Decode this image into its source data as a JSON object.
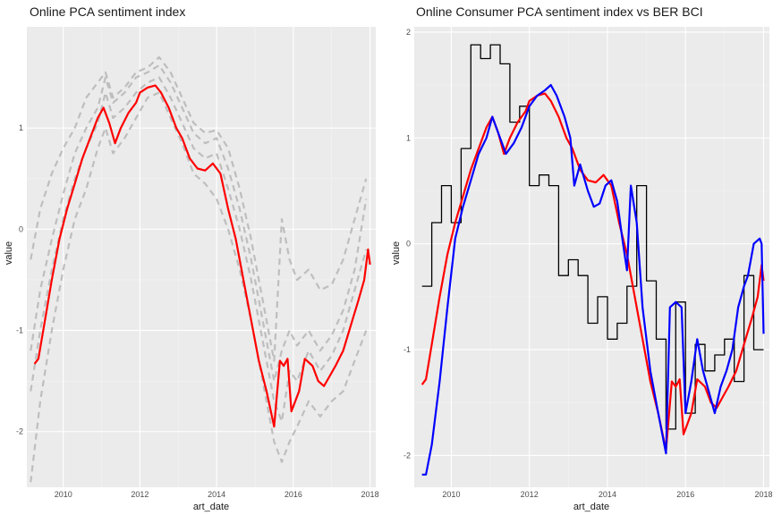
{
  "colors": {
    "panel_background": "#ebebeb",
    "grid_major": "#ffffff",
    "grid_minor": "#f4f4f4",
    "index_line": "#ff0000",
    "component_lines": "#bebebe",
    "ber_line": "#000000",
    "consumer_line": "#0000ff"
  },
  "chart_data": [
    {
      "type": "line",
      "title": "Online PCA sentiment index",
      "xlabel": "art_date",
      "ylabel": "value",
      "xlim": [
        2009.05,
        2018.15
      ],
      "ylim": [
        -2.55,
        2.0
      ],
      "x_ticks": [
        2010,
        2012,
        2014,
        2016,
        2018
      ],
      "x_tick_labels": [
        "2010",
        "2012",
        "2014",
        "2016",
        "2018"
      ],
      "y_ticks": [
        -2,
        -1,
        0,
        1
      ],
      "y_tick_labels": [
        "-2",
        "-1",
        "0",
        "1"
      ],
      "grid": true,
      "series": [
        {
          "role": "index",
          "color": "#ff0000",
          "style": "solid",
          "x": [
            2009.25,
            2009.35,
            2009.5,
            2009.7,
            2009.9,
            2010.1,
            2010.3,
            2010.5,
            2010.7,
            2010.9,
            2011.05,
            2011.2,
            2011.35,
            2011.5,
            2011.7,
            2011.9,
            2012.0,
            2012.2,
            2012.4,
            2012.55,
            2012.75,
            2012.95,
            2013.1,
            2013.3,
            2013.5,
            2013.7,
            2013.9,
            2014.1,
            2014.3,
            2014.5,
            2014.7,
            2014.9,
            2015.1,
            2015.3,
            2015.5,
            2015.65,
            2015.75,
            2015.85,
            2015.95,
            2016.05,
            2016.15,
            2016.3,
            2016.5,
            2016.65,
            2016.8,
            2016.95,
            2017.1,
            2017.3,
            2017.5,
            2017.7,
            2017.85,
            2017.95,
            2018.0
          ],
          "y": [
            -1.33,
            -1.28,
            -0.95,
            -0.5,
            -0.1,
            0.2,
            0.45,
            0.7,
            0.9,
            1.1,
            1.2,
            1.05,
            0.85,
            1.0,
            1.15,
            1.25,
            1.35,
            1.4,
            1.42,
            1.35,
            1.2,
            1.0,
            0.9,
            0.7,
            0.6,
            0.58,
            0.65,
            0.55,
            0.2,
            -0.1,
            -0.5,
            -0.9,
            -1.3,
            -1.6,
            -1.95,
            -1.3,
            -1.35,
            -1.28,
            -1.8,
            -1.7,
            -1.6,
            -1.28,
            -1.35,
            -1.5,
            -1.55,
            -1.45,
            -1.35,
            -1.2,
            -0.95,
            -0.7,
            -0.5,
            -0.2,
            -0.35
          ]
        },
        {
          "role": "component",
          "color": "#bebebe",
          "style": "dashed",
          "x": [
            2009.15,
            2009.4,
            2009.7,
            2010.0,
            2010.3,
            2010.6,
            2010.9,
            2011.1,
            2011.3,
            2011.6,
            2011.9,
            2012.2,
            2012.5,
            2012.8,
            2013.1,
            2013.4,
            2013.7,
            2014.0,
            2014.3,
            2014.6,
            2014.9,
            2015.2,
            2015.5,
            2015.7,
            2015.9,
            2016.1,
            2016.4,
            2016.7,
            2017.0,
            2017.3,
            2017.6,
            2017.9
          ],
          "y": [
            -2.5,
            -1.7,
            -1.0,
            -0.4,
            0.1,
            0.4,
            0.8,
            1.0,
            0.75,
            0.9,
            1.1,
            1.3,
            1.35,
            1.1,
            0.85,
            0.55,
            0.45,
            0.3,
            0.0,
            -0.4,
            -0.9,
            -1.5,
            -2.1,
            -2.3,
            -2.1,
            -1.95,
            -1.7,
            -1.85,
            -1.7,
            -1.6,
            -1.3,
            -1.0
          ]
        },
        {
          "role": "component",
          "color": "#bebebe",
          "style": "dashed",
          "x": [
            2009.15,
            2009.4,
            2009.7,
            2010.0,
            2010.3,
            2010.6,
            2010.9,
            2011.1,
            2011.3,
            2011.6,
            2011.9,
            2012.2,
            2012.5,
            2012.8,
            2013.1,
            2013.4,
            2013.7,
            2014.0,
            2014.3,
            2014.6,
            2014.9,
            2015.2,
            2015.5,
            2015.7,
            2015.9,
            2016.1,
            2016.4,
            2016.7,
            2017.0,
            2017.3,
            2017.6,
            2017.9
          ],
          "y": [
            -1.6,
            -1.0,
            -0.4,
            0.1,
            0.5,
            0.8,
            1.05,
            1.35,
            1.1,
            1.2,
            1.35,
            1.45,
            1.5,
            1.3,
            1.05,
            0.8,
            0.7,
            0.75,
            0.4,
            0.0,
            -0.5,
            -1.1,
            -1.7,
            -1.9,
            -1.4,
            -1.5,
            -1.2,
            -1.4,
            -1.25,
            -1.0,
            -0.6,
            -0.2
          ]
        },
        {
          "role": "component",
          "color": "#bebebe",
          "style": "dashed",
          "x": [
            2009.15,
            2009.4,
            2009.7,
            2010.0,
            2010.3,
            2010.6,
            2010.9,
            2011.1,
            2011.3,
            2011.6,
            2011.9,
            2012.2,
            2012.5,
            2012.8,
            2013.1,
            2013.4,
            2013.7,
            2014.0,
            2014.3,
            2014.6,
            2014.9,
            2015.2,
            2015.5,
            2015.7,
            2015.9,
            2016.1,
            2016.4,
            2016.7,
            2017.0,
            2017.3,
            2017.6,
            2017.9
          ],
          "y": [
            -1.2,
            -0.6,
            -0.1,
            0.35,
            0.75,
            1.0,
            1.2,
            1.5,
            1.25,
            1.35,
            1.5,
            1.55,
            1.62,
            1.45,
            1.2,
            0.95,
            0.85,
            0.9,
            0.6,
            0.2,
            -0.3,
            -0.9,
            -1.5,
            -1.2,
            -1.0,
            -1.15,
            -1.0,
            -1.2,
            -1.05,
            -0.8,
            -0.4,
            0.3
          ]
        },
        {
          "role": "component",
          "color": "#bebebe",
          "style": "dashed",
          "x": [
            2009.15,
            2009.4,
            2009.7,
            2010.0,
            2010.3,
            2010.6,
            2010.9,
            2011.1,
            2011.3,
            2011.6,
            2011.9,
            2012.2,
            2012.5,
            2012.8,
            2013.1,
            2013.4,
            2013.7,
            2014.0,
            2014.3,
            2014.6,
            2014.9,
            2015.2,
            2015.5,
            2015.7,
            2015.9,
            2016.1,
            2016.4,
            2016.7,
            2017.0,
            2017.3,
            2017.6,
            2017.9
          ],
          "y": [
            -0.3,
            0.2,
            0.55,
            0.8,
            1.0,
            1.3,
            1.45,
            1.55,
            1.3,
            1.4,
            1.55,
            1.6,
            1.7,
            1.55,
            1.3,
            1.05,
            0.95,
            0.98,
            0.8,
            0.4,
            -0.1,
            -0.7,
            -1.3,
            0.1,
            -0.3,
            -0.5,
            -0.4,
            -0.6,
            -0.55,
            -0.3,
            0.1,
            0.5
          ]
        }
      ]
    },
    {
      "type": "line",
      "title": "Online Consumer PCA sentiment index vs BER BCI",
      "xlabel": "art_date",
      "ylabel": "value",
      "xlim": [
        2009.05,
        2018.15
      ],
      "ylim": [
        -2.3,
        2.05
      ],
      "x_ticks": [
        2010,
        2012,
        2014,
        2016,
        2018
      ],
      "x_tick_labels": [
        "2010",
        "2012",
        "2014",
        "2016",
        "2018"
      ],
      "y_ticks": [
        -2,
        -1,
        0,
        1,
        2
      ],
      "y_tick_labels": [
        "-2",
        "-1",
        "0",
        "1",
        "2"
      ],
      "grid": true,
      "series": [
        {
          "role": "ber-bci",
          "color": "#000000",
          "style": "step",
          "x": [
            2009.25,
            2009.5,
            2009.75,
            2010.0,
            2010.25,
            2010.5,
            2010.75,
            2011.0,
            2011.25,
            2011.5,
            2011.75,
            2012.0,
            2012.25,
            2012.5,
            2012.75,
            2013.0,
            2013.25,
            2013.5,
            2013.75,
            2014.0,
            2014.25,
            2014.5,
            2014.75,
            2015.0,
            2015.25,
            2015.5,
            2015.75,
            2016.0,
            2016.25,
            2016.5,
            2016.75,
            2017.0,
            2017.25,
            2017.5,
            2017.75,
            2018.0
          ],
          "y": [
            -0.4,
            0.2,
            0.55,
            0.2,
            0.9,
            1.88,
            1.75,
            1.88,
            1.7,
            1.15,
            1.3,
            0.55,
            0.65,
            0.55,
            -0.3,
            -0.15,
            -0.3,
            -0.75,
            -0.5,
            -0.9,
            -0.75,
            -0.4,
            0.55,
            -0.35,
            -0.9,
            -1.75,
            -0.55,
            -1.6,
            -0.95,
            -1.2,
            -1.05,
            -0.9,
            -1.3,
            -0.3,
            -1.0,
            -1.0
          ]
        },
        {
          "role": "consumer-index",
          "color": "#ff0000",
          "style": "solid",
          "x": [
            2009.25,
            2009.35,
            2009.5,
            2009.7,
            2009.9,
            2010.1,
            2010.3,
            2010.5,
            2010.7,
            2010.9,
            2011.05,
            2011.2,
            2011.35,
            2011.5,
            2011.7,
            2011.9,
            2012.0,
            2012.2,
            2012.4,
            2012.55,
            2012.75,
            2012.95,
            2013.1,
            2013.3,
            2013.5,
            2013.7,
            2013.9,
            2014.1,
            2014.3,
            2014.5,
            2014.7,
            2014.9,
            2015.1,
            2015.3,
            2015.5,
            2015.65,
            2015.75,
            2015.85,
            2015.95,
            2016.05,
            2016.15,
            2016.3,
            2016.5,
            2016.65,
            2016.8,
            2016.95,
            2017.1,
            2017.3,
            2017.5,
            2017.7,
            2017.85,
            2017.95,
            2018.0
          ],
          "y": [
            -1.33,
            -1.28,
            -0.95,
            -0.5,
            -0.1,
            0.2,
            0.45,
            0.7,
            0.9,
            1.1,
            1.2,
            1.05,
            0.85,
            1.0,
            1.15,
            1.25,
            1.35,
            1.4,
            1.42,
            1.35,
            1.2,
            1.0,
            0.9,
            0.7,
            0.6,
            0.58,
            0.65,
            0.55,
            0.2,
            -0.1,
            -0.5,
            -0.9,
            -1.3,
            -1.6,
            -1.95,
            -1.3,
            -1.35,
            -1.28,
            -1.8,
            -1.7,
            -1.6,
            -1.28,
            -1.35,
            -1.5,
            -1.55,
            -1.45,
            -1.35,
            -1.2,
            -0.95,
            -0.7,
            -0.5,
            -0.2,
            -0.35
          ]
        },
        {
          "role": "consumer-component",
          "color": "#0000ff",
          "style": "solid",
          "x": [
            2009.25,
            2009.35,
            2009.5,
            2009.7,
            2009.9,
            2010.1,
            2010.3,
            2010.5,
            2010.7,
            2010.9,
            2011.05,
            2011.2,
            2011.4,
            2011.6,
            2011.8,
            2012.0,
            2012.2,
            2012.4,
            2012.55,
            2012.7,
            2012.9,
            2013.05,
            2013.15,
            2013.3,
            2013.5,
            2013.65,
            2013.8,
            2013.95,
            2014.1,
            2014.25,
            2014.4,
            2014.5,
            2014.6,
            2014.75,
            2014.9,
            2015.1,
            2015.3,
            2015.5,
            2015.6,
            2015.75,
            2015.9,
            2016.0,
            2016.15,
            2016.3,
            2016.45,
            2016.6,
            2016.75,
            2016.9,
            2017.05,
            2017.2,
            2017.35,
            2017.5,
            2017.6,
            2017.75,
            2017.9,
            2017.95,
            2018.0
          ],
          "y": [
            -2.18,
            -2.18,
            -1.9,
            -1.3,
            -0.6,
            0.05,
            0.35,
            0.6,
            0.85,
            1.0,
            1.2,
            1.05,
            0.85,
            0.95,
            1.1,
            1.3,
            1.4,
            1.45,
            1.5,
            1.4,
            1.2,
            1.0,
            0.55,
            0.75,
            0.5,
            0.35,
            0.38,
            0.55,
            0.6,
            0.4,
            0.0,
            -0.25,
            0.55,
            0.2,
            -0.6,
            -1.2,
            -1.6,
            -1.98,
            -0.6,
            -0.55,
            -0.6,
            -1.6,
            -1.3,
            -0.9,
            -1.2,
            -1.4,
            -1.6,
            -1.35,
            -1.2,
            -1.0,
            -0.6,
            -0.4,
            -0.3,
            0.0,
            0.05,
            0.0,
            -0.85
          ]
        }
      ]
    }
  ]
}
